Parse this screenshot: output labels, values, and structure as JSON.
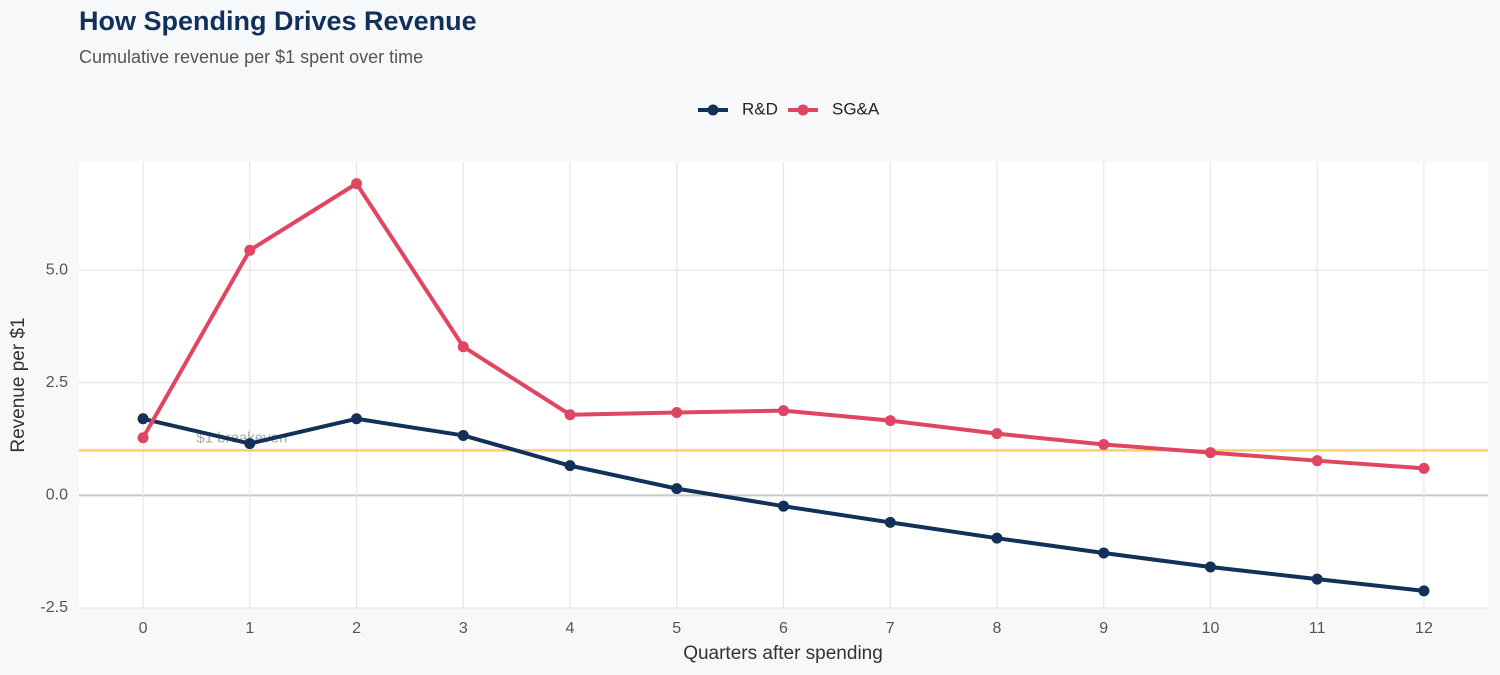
{
  "chart_data": {
    "type": "line",
    "title": "How Spending Drives Revenue",
    "subtitle": "Cumulative revenue per $1 spent over time",
    "x_label": "Quarters after spending",
    "y_label": "Revenue per $1",
    "x": [
      0,
      1,
      2,
      3,
      4,
      5,
      6,
      7,
      8,
      9,
      10,
      11,
      12
    ],
    "series": [
      {
        "name": "R&D",
        "color": "#12315a",
        "values": [
          1.7,
          1.15,
          1.7,
          1.33,
          0.66,
          0.15,
          -0.24,
          -0.6,
          -0.95,
          -1.28,
          -1.59,
          -1.86,
          -2.12
        ]
      },
      {
        "name": "SG&A",
        "color": "#e04562",
        "values": [
          1.28,
          5.44,
          6.92,
          3.3,
          1.79,
          1.84,
          1.88,
          1.66,
          1.37,
          1.13,
          0.95,
          0.77,
          0.6
        ]
      }
    ],
    "reference_line": {
      "value": 1,
      "label": "$1 breakeven",
      "color": "#ffd166"
    },
    "xlim": [
      -0.6,
      12.6
    ],
    "ylim": [
      -2.5,
      7.4
    ],
    "xticks": [
      0,
      1,
      2,
      3,
      4,
      5,
      6,
      7,
      8,
      9,
      10,
      11,
      12
    ],
    "yticks": [
      {
        "value": -2.5,
        "label": "-2.5"
      },
      {
        "value": 0,
        "label": "0.0"
      },
      {
        "value": 2.5,
        "label": "2.5"
      },
      {
        "value": 5,
        "label": "5.0"
      }
    ],
    "grid": true,
    "legend": "top"
  }
}
